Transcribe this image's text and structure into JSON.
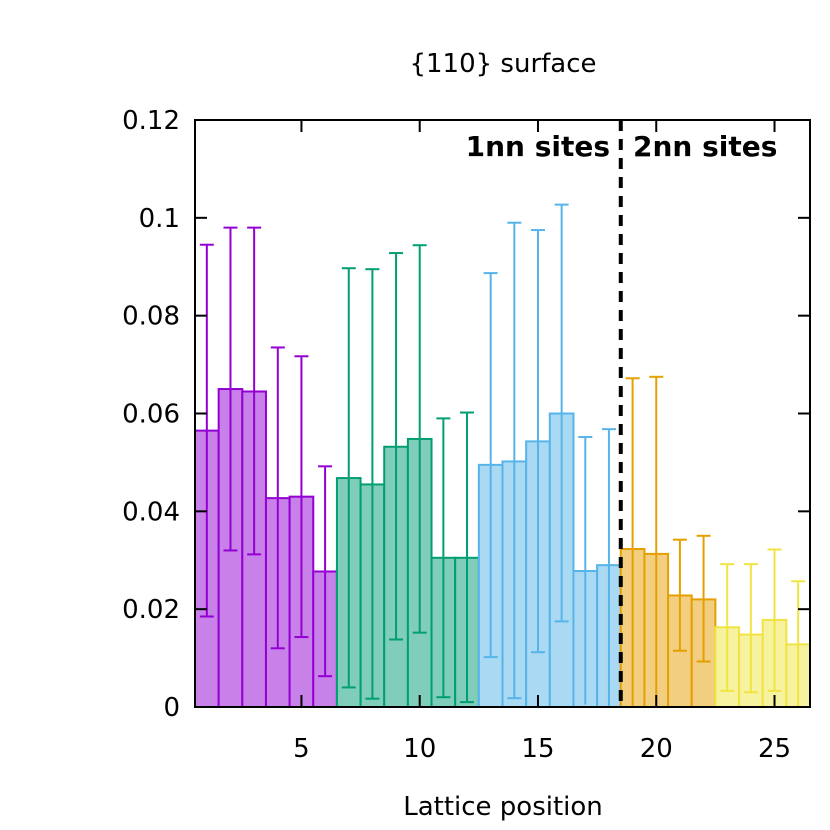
{
  "chart_data": {
    "type": "bar",
    "title": "{110} surface",
    "xlabel": "Lattice position",
    "ylabel": "",
    "xlim": [
      0.5,
      26.5
    ],
    "ylim": [
      0,
      0.12
    ],
    "x_ticks": [
      5,
      10,
      15,
      20,
      25
    ],
    "y_ticks": [
      0,
      0.02,
      0.04,
      0.06,
      0.08,
      0.1,
      0.12
    ],
    "y_tick_labels": [
      "0",
      "0.02",
      "0.04",
      "0.06",
      "0.08",
      "0.1",
      "0.12"
    ],
    "annotations": [
      {
        "text": "1nn sites",
        "side": "left-of-divider"
      },
      {
        "text": "2nn sites",
        "side": "right-of-divider"
      }
    ],
    "divider_x": 18.5,
    "series": [
      {
        "color": "#9400d3",
        "fill": "#c981ea",
        "x": [
          1,
          2,
          3,
          4,
          5,
          6
        ],
        "values": [
          0.0565,
          0.065,
          0.0645,
          0.0427,
          0.043,
          0.0277
        ],
        "err_high": [
          0.0945,
          0.098,
          0.098,
          0.0735,
          0.0717,
          0.0492
        ],
        "err_low": [
          0.0185,
          0.032,
          0.0312,
          0.012,
          0.0143,
          0.0063
        ]
      },
      {
        "color": "#009e73",
        "fill": "#80ceb9",
        "x": [
          7,
          8,
          9,
          10,
          11,
          12
        ],
        "values": [
          0.0468,
          0.0455,
          0.0532,
          0.0548,
          0.0305,
          0.0305
        ],
        "err_high": [
          0.0897,
          0.0895,
          0.0928,
          0.0944,
          0.059,
          0.0602
        ],
        "err_low": [
          0.004,
          0.0017,
          0.0138,
          0.0152,
          0.002,
          0.001
        ]
      },
      {
        "color": "#56b4e9",
        "fill": "#aad9f4",
        "x": [
          13,
          14,
          15,
          16,
          17,
          18
        ],
        "values": [
          0.0495,
          0.0502,
          0.0543,
          0.06,
          0.0278,
          0.029
        ],
        "err_high": [
          0.0887,
          0.099,
          0.0975,
          0.1027,
          0.0552,
          0.0568
        ],
        "err_low": [
          0.0102,
          0.0018,
          0.0112,
          0.0175,
          0.0005,
          0.0002
        ]
      },
      {
        "color": "#e69f00",
        "fill": "#f2cf80",
        "x": [
          19,
          20,
          21,
          22
        ],
        "values": [
          0.0323,
          0.0313,
          0.0228,
          0.022
        ],
        "err_high": [
          0.0672,
          0.0675,
          0.0342,
          0.035
        ],
        "err_low": [
          0,
          0,
          0.0115,
          0.0093
        ]
      },
      {
        "color": "#f0e442",
        "fill": "#f7f2a0",
        "x": [
          23,
          24,
          25,
          26
        ],
        "values": [
          0.0163,
          0.0148,
          0.0178,
          0.0128
        ],
        "err_high": [
          0.0292,
          0.0292,
          0.0322,
          0.0257
        ],
        "err_low": [
          0.0033,
          0.003,
          0.0033,
          0.0
        ]
      }
    ]
  }
}
